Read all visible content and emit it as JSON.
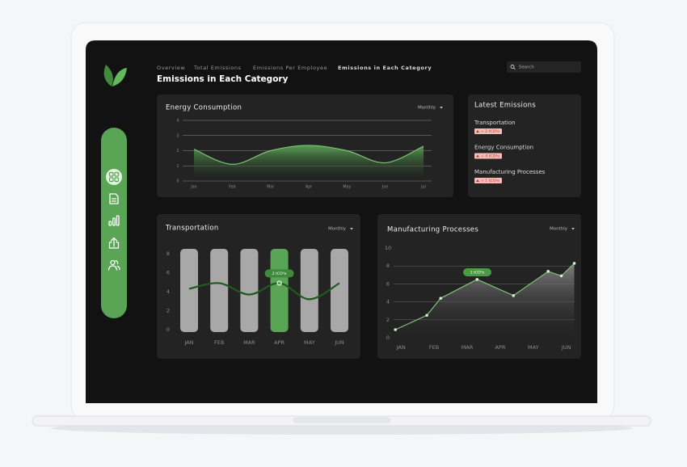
{
  "nav": {
    "links": [
      "Overview",
      "Total Emissions",
      "Emissions Per Employee",
      "Emissions in Each Category"
    ],
    "title": "Emissions in Each Category"
  },
  "search": "Search",
  "latest_emissions": {
    "title": "Latest Emissions",
    "items": [
      {
        "name": "Transportation",
        "change": "+ 2 tCO²e"
      },
      {
        "name": "Energy Consumption",
        "change": "+ 4 tCO²e"
      },
      {
        "name": "Manufacturing Processes",
        "change": "+ 1 tCO²e"
      }
    ]
  },
  "chart_data": [
    {
      "type": "area",
      "title": "Energy Consumption",
      "dropdown": "Monthly",
      "smooth": true,
      "categories": [
        "Jan",
        "Feb",
        "Mar",
        "Apr",
        "May",
        "Jun",
        "Jul"
      ],
      "values": [
        2.1,
        1.1,
        2.0,
        2.35,
        2.0,
        1.2,
        2.3
      ],
      "ylim": [
        0,
        4
      ],
      "yticks": [
        0,
        1,
        2,
        3,
        4
      ],
      "grid": true,
      "color": "#7cc276",
      "area_color": "#5aa555"
    },
    {
      "type": "line",
      "title": "Transportation",
      "dropdown": "Monthly",
      "smooth": true,
      "categories": [
        "JAN",
        "FEB",
        "MAR",
        "APR",
        "MAY",
        "JUN"
      ],
      "values": [
        4.3,
        4.9,
        3.7,
        4.9,
        3.2,
        4.9
      ],
      "ylim": [
        0,
        8
      ],
      "yticks": [
        0,
        2,
        4,
        6,
        8
      ],
      "grid": false,
      "color": "#1f5a1e",
      "column_color": "#a8a8a8",
      "highlight": "APR",
      "highlight_color": "#5aa555",
      "tooltip": "2 tCO²e"
    },
    {
      "type": "area",
      "title": "Manufacturing Processes",
      "dropdown": "Monthly",
      "smooth": false,
      "x": [
        -0.17,
        0.78,
        1.2,
        2.3,
        3.4,
        4.45,
        4.85,
        5.24
      ],
      "values": [
        0.9,
        2.5,
        4.4,
        6.5,
        4.7,
        7.4,
        6.9,
        8.3
      ],
      "xlim": [
        -0.2,
        5.3
      ],
      "xticks": [
        {
          "value": 0,
          "label": "JAN"
        },
        {
          "value": 1,
          "label": "FEB"
        },
        {
          "value": 2,
          "label": "MAR"
        },
        {
          "value": 3,
          "label": "APR"
        },
        {
          "value": 4,
          "label": "MAY"
        },
        {
          "value": 5,
          "label": "JUN"
        }
      ],
      "ylim": [
        0,
        10
      ],
      "yticks": [
        0,
        2,
        4,
        6,
        8,
        10
      ],
      "grid": true,
      "color": "#7cc276",
      "area_color": "#8a8a8a",
      "tooltip": "1 tCO²e"
    }
  ]
}
